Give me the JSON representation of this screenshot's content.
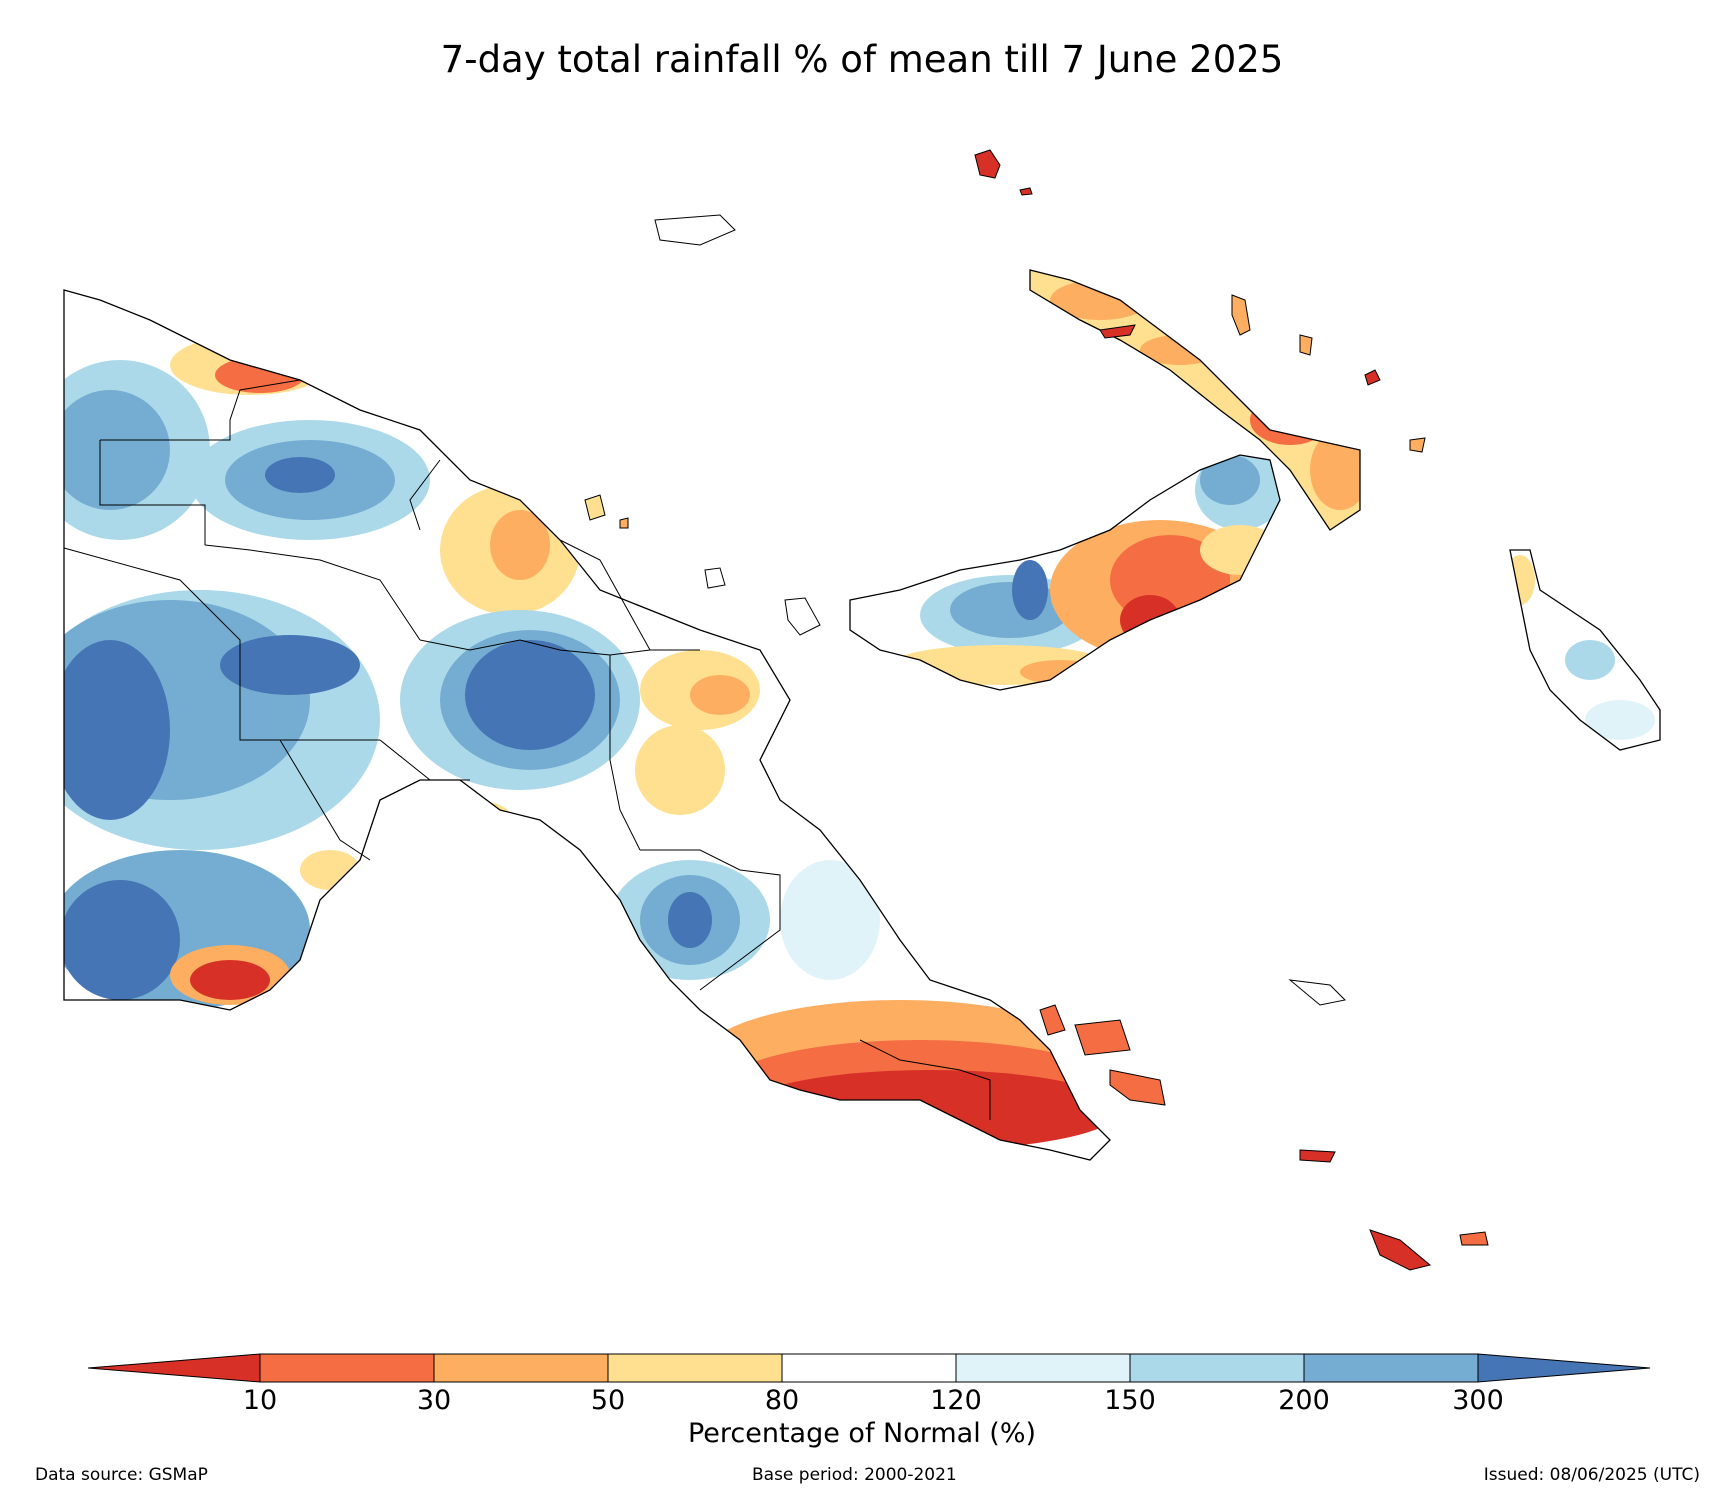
{
  "title": "7-day total rainfall % of mean till 7 June 2025",
  "colorbar": {
    "label": "Percentage of Normal (%)",
    "ticks": [
      "10",
      "30",
      "50",
      "80",
      "120",
      "150",
      "200",
      "300"
    ],
    "colors": [
      "#d73027",
      "#f46d43",
      "#fdae61",
      "#fee090",
      "#ffffff",
      "#e0f3f8",
      "#abd9e9",
      "#74add1",
      "#4575b4"
    ]
  },
  "footer": {
    "source": "Data source: GSMaP",
    "base_period": "Base period: 2000-2021",
    "issued": "Issued: 08/06/2025 (UTC)"
  }
}
